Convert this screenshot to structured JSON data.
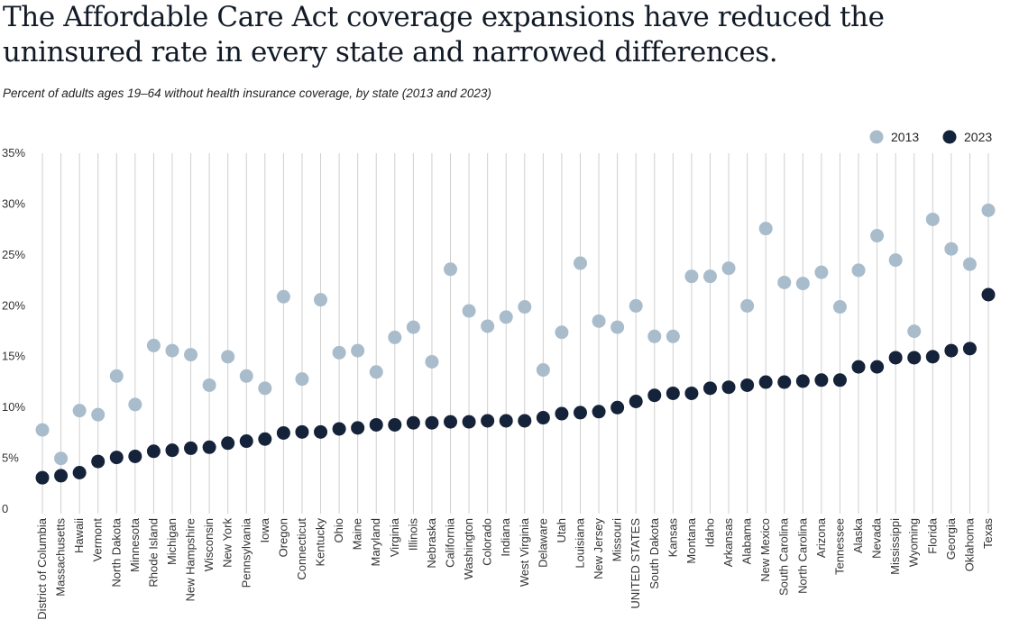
{
  "title": "The Affordable Care Act coverage expansions have reduced the uninsured rate in every state and narrowed differences.",
  "subtitle": "Percent of adults ages 19–64 without health insurance coverage, by state (2013 and 2023)",
  "colors": {
    "series_2013": "#a9bccb",
    "series_2023": "#14233a",
    "grid": "#cfcfcf"
  },
  "chart_data": {
    "type": "scatter",
    "title": "The Affordable Care Act coverage expansions have reduced the uninsured rate in every state and narrowed differences.",
    "subtitle": "Percent of adults ages 19–64 without health insurance coverage, by state (2013 and 2023)",
    "xlabel": "",
    "ylabel": "",
    "ylim": [
      0,
      35
    ],
    "yticks": [
      0,
      5,
      10,
      15,
      20,
      25,
      30,
      35
    ],
    "ytick_labels": [
      "0",
      "5%",
      "10%",
      "15%",
      "20%",
      "25%",
      "30%",
      "35%"
    ],
    "grid": true,
    "legend_position": "top-right",
    "categories": [
      "District of Columbia",
      "Massachusetts",
      "Hawaii",
      "Vermont",
      "North Dakota",
      "Minnesota",
      "Rhode Island",
      "Michigan",
      "New Hampshire",
      "Wisconsin",
      "New York",
      "Pennsylvania",
      "Iowa",
      "Oregon",
      "Connecticut",
      "Kentucky",
      "Ohio",
      "Maine",
      "Maryland",
      "Virginia",
      "Illinois",
      "Nebraska",
      "California",
      "Washington",
      "Colorado",
      "Indiana",
      "West Virginia",
      "Delaware",
      "Utah",
      "Louisiana",
      "New Jersey",
      "Missouri",
      "UNITED STATES",
      "South Dakota",
      "Kansas",
      "Montana",
      "Idaho",
      "Arkansas",
      "Alabama",
      "New Mexico",
      "South Carolina",
      "North Carolina",
      "Arizona",
      "Tennessee",
      "Alaska",
      "Nevada",
      "Mississippi",
      "Wyoming",
      "Florida",
      "Georgia",
      "Oklahoma",
      "Texas"
    ],
    "series": [
      {
        "name": "2013",
        "values": [
          7.7,
          4.9,
          9.6,
          9.2,
          13.0,
          10.2,
          16.0,
          15.5,
          15.1,
          12.1,
          14.9,
          13.0,
          11.8,
          20.8,
          12.7,
          20.5,
          15.3,
          15.5,
          13.4,
          16.8,
          17.8,
          14.4,
          23.5,
          19.4,
          17.9,
          18.8,
          19.8,
          13.6,
          17.3,
          24.1,
          18.4,
          17.8,
          19.9,
          16.9,
          16.9,
          22.8,
          22.8,
          23.6,
          19.9,
          27.5,
          22.2,
          22.1,
          23.2,
          19.8,
          23.4,
          26.8,
          24.4,
          17.4,
          28.4,
          25.5,
          24.0,
          29.3
        ]
      },
      {
        "name": "2023",
        "values": [
          3.0,
          3.2,
          3.5,
          4.6,
          5.0,
          5.1,
          5.6,
          5.7,
          5.9,
          6.0,
          6.4,
          6.6,
          6.8,
          7.4,
          7.5,
          7.5,
          7.8,
          7.9,
          8.2,
          8.2,
          8.4,
          8.4,
          8.5,
          8.5,
          8.6,
          8.6,
          8.6,
          8.9,
          9.3,
          9.4,
          9.5,
          9.9,
          10.5,
          11.1,
          11.3,
          11.3,
          11.8,
          11.9,
          12.1,
          12.4,
          12.4,
          12.5,
          12.6,
          12.6,
          13.9,
          13.9,
          14.8,
          14.8,
          14.9,
          15.5,
          15.7,
          21.0
        ]
      }
    ]
  }
}
